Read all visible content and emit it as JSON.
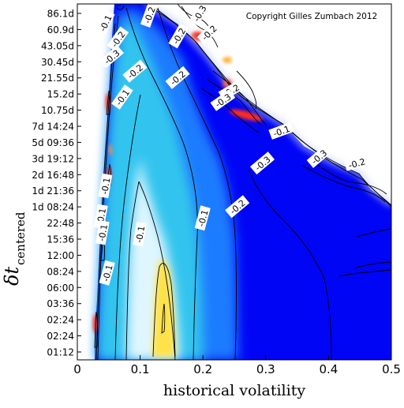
{
  "chart_data": {
    "type": "heatmap",
    "title": "",
    "annotation": "Copyright Gilles Zumbach 2012",
    "xlabel": "historical volatility",
    "ylabel_main": "δt",
    "ylabel_sub": "centered",
    "xlim": [
      0,
      0.5
    ],
    "x_ticks": [
      0,
      0.1,
      0.2,
      0.3,
      0.4,
      0.5
    ],
    "x_tick_labels": [
      "0",
      "0.1",
      "0.2",
      "0.3",
      "0.4",
      "0.5"
    ],
    "y_tick_labels": [
      "01:12",
      "02:24",
      "02:24",
      "03:36",
      "06:00",
      "08:24",
      "12:00",
      "15:36",
      "22:48",
      "1d 08:24",
      "1d 21:36",
      "2d 16:48",
      "3d 19:12",
      "5d 09:36",
      "7d 14:24",
      "10.75d",
      "15.2d",
      "21.55d",
      "30.45d",
      "43.05d",
      "60.9d",
      "86.1d"
    ],
    "grid": false,
    "colormap": [
      "#0000ff",
      "#1e90ff",
      "#38c8f0",
      "#e6f8ff",
      "#ffe24a",
      "#ff2a1a"
    ],
    "contour_labels": [
      {
        "text": "-0.1",
        "x": 0.045,
        "y": 20.4,
        "rot": -65
      },
      {
        "text": "-0.2",
        "x": 0.065,
        "y": 19.4,
        "rot": -55
      },
      {
        "text": "-0.3",
        "x": 0.055,
        "y": 18.3,
        "rot": -40
      },
      {
        "text": "-0.2",
        "x": 0.092,
        "y": 17.4,
        "rot": -40
      },
      {
        "text": "-0.1",
        "x": 0.072,
        "y": 15.8,
        "rot": -55
      },
      {
        "text": "-0.1",
        "x": 0.045,
        "y": 10.3,
        "rot": -80
      },
      {
        "text": "-0.1",
        "x": 0.048,
        "y": 4.9,
        "rot": -75
      },
      {
        "text": "-0.2",
        "x": 0.162,
        "y": 19.6,
        "rot": -60
      },
      {
        "text": "-0.2",
        "x": 0.115,
        "y": 20.9,
        "rot": -70
      },
      {
        "text": "-0.3",
        "x": 0.195,
        "y": 21.0,
        "rot": -60
      },
      {
        "text": "-0.2",
        "x": 0.21,
        "y": 19.8,
        "rot": -45
      },
      {
        "text": "-0.2",
        "x": 0.16,
        "y": 17.0,
        "rot": -40
      },
      {
        "text": "-0.2",
        "x": 0.245,
        "y": 16.2,
        "rot": -30
      },
      {
        "text": "-0.3",
        "x": 0.232,
        "y": 15.6,
        "rot": -35
      },
      {
        "text": "-0.1",
        "x": 0.325,
        "y": 13.7,
        "rot": -20
      },
      {
        "text": "-0.3",
        "x": 0.295,
        "y": 11.7,
        "rot": -40
      },
      {
        "text": "-0.3",
        "x": 0.385,
        "y": 12.1,
        "rot": -40
      },
      {
        "text": "-0.2",
        "x": 0.445,
        "y": 11.7,
        "rot": -15
      },
      {
        "text": "-0.2",
        "x": 0.255,
        "y": 9.0,
        "rot": -40
      },
      {
        "text": "-0.1",
        "x": 0.2,
        "y": 8.3,
        "rot": -75
      },
      {
        "text": "-0.1",
        "x": 0.1,
        "y": 7.3,
        "rot": -80
      },
      {
        "text": "-0.1",
        "x": 0.038,
        "y": 8.4,
        "rot": -80
      },
      {
        "text": "-0.1",
        "x": 0.0405,
        "y": 7.4,
        "rot": -80
      }
    ]
  }
}
